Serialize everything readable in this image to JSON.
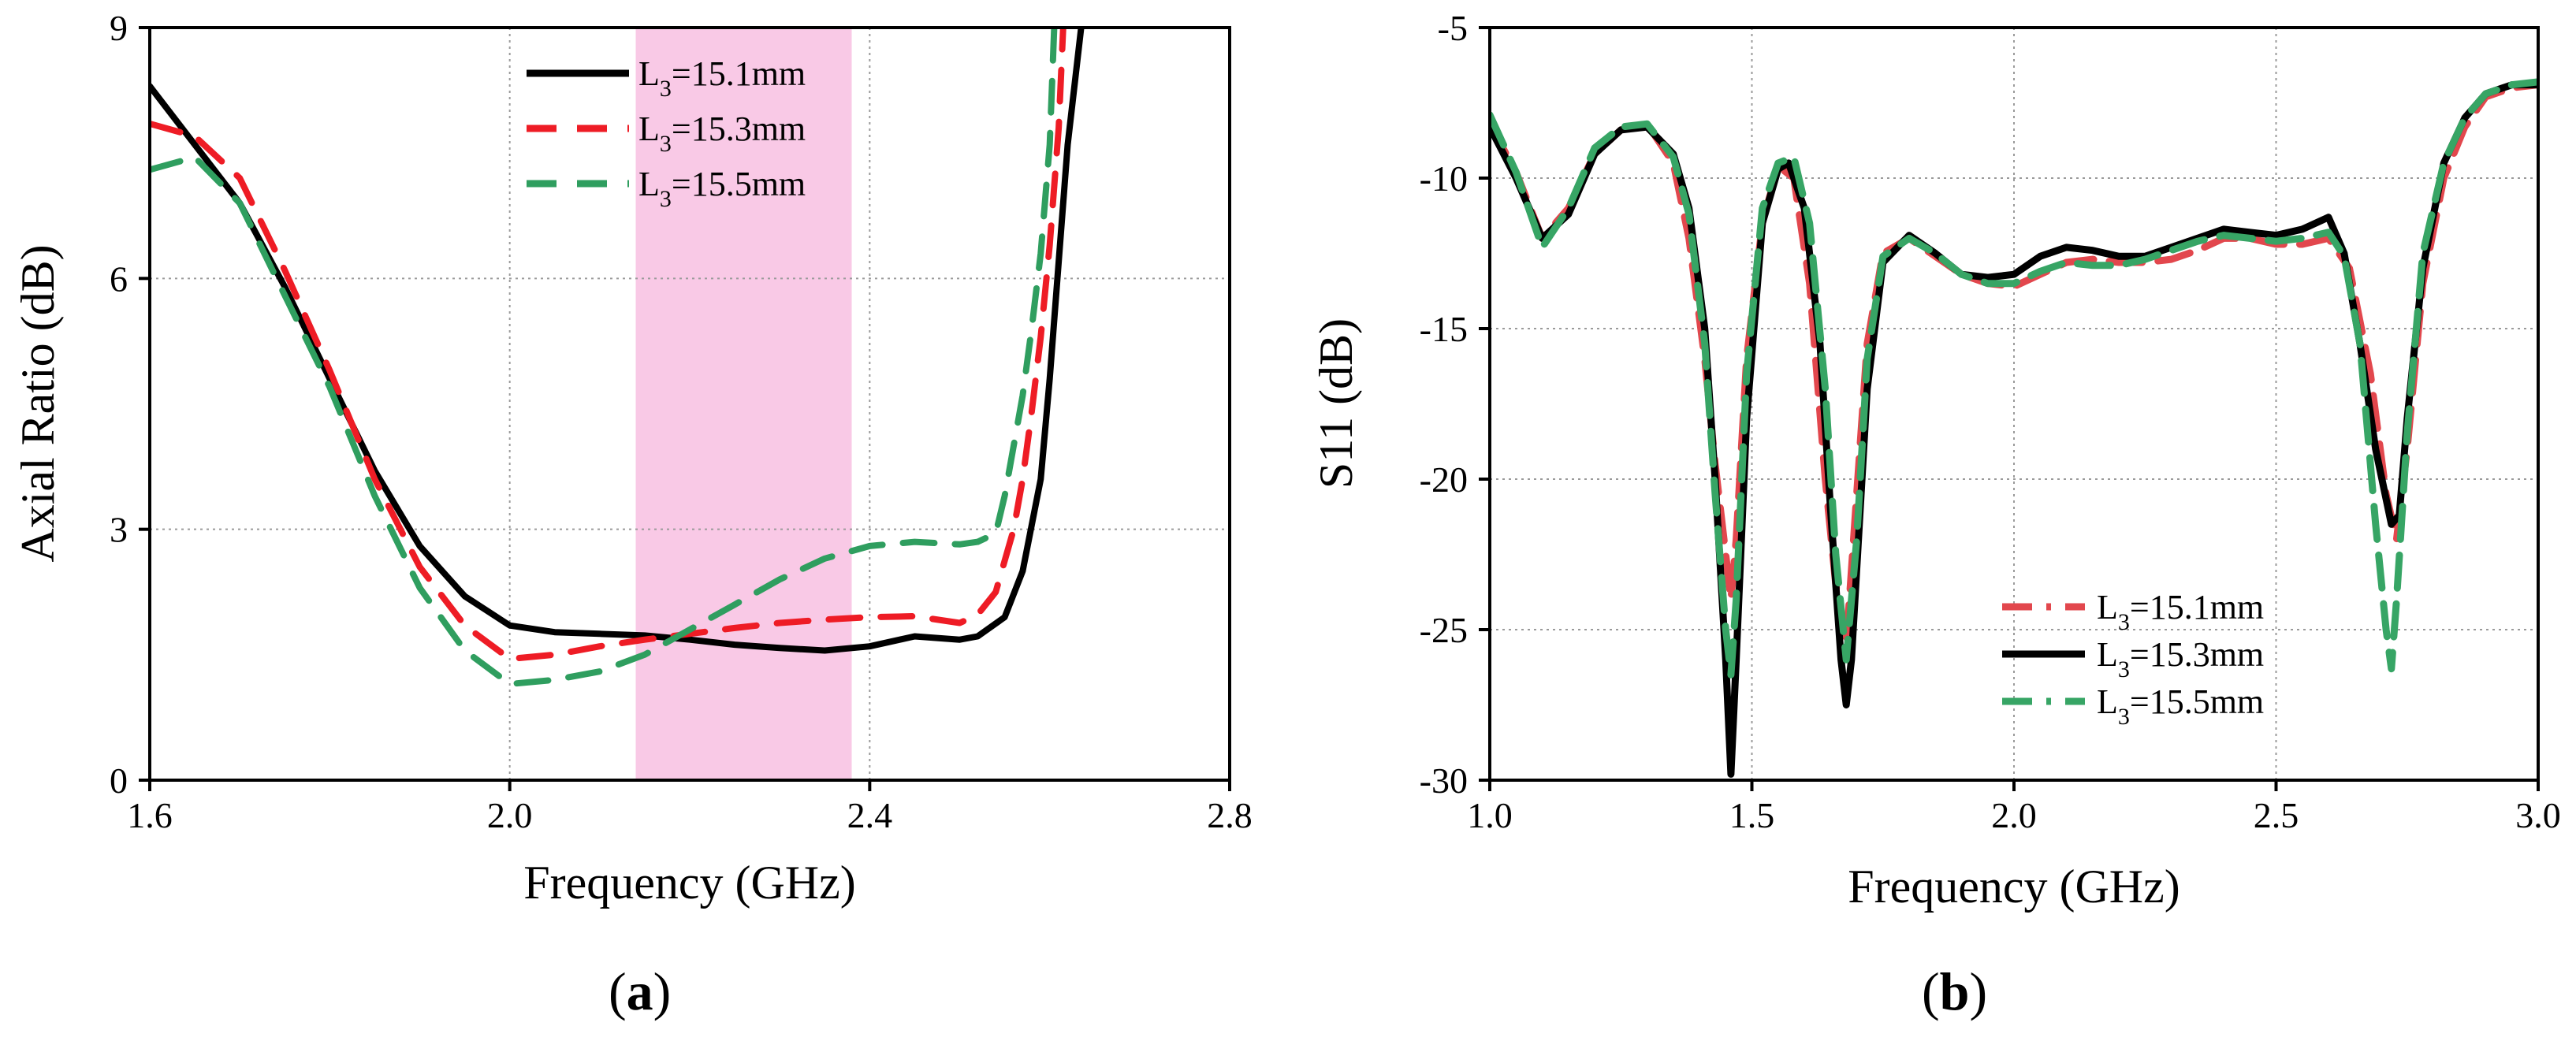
{
  "chart_data": [
    {
      "type": "line",
      "panel_label": "a",
      "xlabel": "Frequency (GHz)",
      "ylabel": "Axial Ratio (dB)",
      "xlim": [
        1.6,
        2.8
      ],
      "ylim": [
        0,
        9
      ],
      "xticks": [
        1.6,
        2.0,
        2.4,
        2.8
      ],
      "xtick_labels": [
        "1.6",
        "2.0",
        "2.4",
        "2.8"
      ],
      "yticks": [
        0,
        3,
        6,
        9
      ],
      "ytick_labels": [
        "0",
        "3",
        "6",
        "9"
      ],
      "grid": true,
      "legend_position": "top-center",
      "highlight_band": {
        "x_range": [
          2.14,
          2.38
        ],
        "color": "#f9c9e6"
      },
      "series": [
        {
          "name": "L3=15.1mm",
          "legend_base": "L",
          "legend_sub": "3",
          "legend_value": "=15.1mm",
          "color": "#000000",
          "style": "solid",
          "x": [
            1.6,
            1.65,
            1.7,
            1.75,
            1.8,
            1.85,
            1.9,
            1.95,
            2.0,
            2.05,
            2.1,
            2.15,
            2.2,
            2.25,
            2.3,
            2.35,
            2.4,
            2.45,
            2.5,
            2.52,
            2.55,
            2.57,
            2.59,
            2.6,
            2.61,
            2.62,
            2.635
          ],
          "y": [
            8.3,
            7.6,
            6.9,
            5.9,
            4.8,
            3.7,
            2.8,
            2.2,
            1.85,
            1.77,
            1.75,
            1.73,
            1.68,
            1.62,
            1.58,
            1.55,
            1.6,
            1.72,
            1.68,
            1.72,
            1.95,
            2.5,
            3.6,
            4.8,
            6.2,
            7.6,
            9.0
          ]
        },
        {
          "name": "L3=15.3mm",
          "legend_base": "L",
          "legend_sub": "3",
          "legend_value": "=15.3mm",
          "color": "#ee1c25",
          "style": "dashed",
          "x": [
            1.6,
            1.65,
            1.7,
            1.75,
            1.8,
            1.85,
            1.9,
            1.95,
            2.0,
            2.05,
            2.1,
            2.15,
            2.2,
            2.25,
            2.3,
            2.35,
            2.4,
            2.45,
            2.5,
            2.52,
            2.54,
            2.56,
            2.57,
            2.58,
            2.59,
            2.6,
            2.61,
            2.615
          ],
          "y": [
            7.85,
            7.7,
            7.2,
            6.1,
            4.9,
            3.6,
            2.55,
            1.85,
            1.45,
            1.5,
            1.6,
            1.68,
            1.75,
            1.82,
            1.88,
            1.92,
            1.95,
            1.96,
            1.88,
            1.98,
            2.25,
            3.0,
            3.6,
            4.4,
            5.3,
            6.4,
            7.8,
            9.0
          ]
        },
        {
          "name": "L3=15.5mm",
          "legend_base": "L",
          "legend_sub": "3",
          "legend_value": "=15.5mm",
          "color": "#2f9e5f",
          "style": "dashed",
          "x": [
            1.6,
            1.65,
            1.7,
            1.75,
            1.8,
            1.85,
            1.9,
            1.95,
            2.0,
            2.05,
            2.1,
            2.15,
            2.2,
            2.25,
            2.3,
            2.35,
            2.4,
            2.45,
            2.5,
            2.52,
            2.54,
            2.55,
            2.56,
            2.57,
            2.58,
            2.59,
            2.6,
            2.605
          ],
          "y": [
            7.3,
            7.45,
            6.9,
            5.8,
            4.7,
            3.4,
            2.3,
            1.55,
            1.15,
            1.2,
            1.3,
            1.5,
            1.8,
            2.1,
            2.4,
            2.65,
            2.8,
            2.85,
            2.82,
            2.85,
            2.95,
            3.4,
            4.0,
            4.6,
            5.4,
            6.3,
            7.6,
            9.0
          ]
        }
      ]
    },
    {
      "type": "line",
      "panel_label": "b",
      "xlabel": "Frequency (GHz)",
      "ylabel": "S11 (dB)",
      "xlim": [
        1.0,
        3.0
      ],
      "ylim": [
        -30,
        -5
      ],
      "xticks": [
        1.0,
        1.5,
        2.0,
        2.5,
        3.0
      ],
      "xtick_labels": [
        "1.0",
        "1.5",
        "2.0",
        "2.5",
        "3.0"
      ],
      "yticks": [
        -30,
        -25,
        -20,
        -15,
        -10,
        -5
      ],
      "ytick_labels": [
        "-30",
        "-25",
        "-20",
        "-15",
        "-10",
        "-5"
      ],
      "grid": true,
      "legend_position": "bottom-center",
      "series": [
        {
          "name": "L3=15.1mm",
          "legend_base": "L",
          "legend_sub": "3",
          "legend_value": "=15.1mm",
          "color": "#e2474d",
          "style": "dashed",
          "x": [
            1.0,
            1.05,
            1.1,
            1.15,
            1.2,
            1.25,
            1.3,
            1.35,
            1.38,
            1.41,
            1.43,
            1.45,
            1.46,
            1.47,
            1.49,
            1.52,
            1.55,
            1.58,
            1.61,
            1.64,
            1.66,
            1.68,
            1.7,
            1.72,
            1.75,
            1.8,
            1.85,
            1.9,
            1.95,
            2.0,
            2.05,
            2.1,
            2.15,
            2.2,
            2.25,
            2.3,
            2.35,
            2.4,
            2.45,
            2.5,
            2.55,
            2.6,
            2.64,
            2.68,
            2.71,
            2.73,
            2.75,
            2.78,
            2.82,
            2.86,
            2.9,
            2.95,
            3.0
          ],
          "y": [
            -8.2,
            -9.8,
            -12.0,
            -11.0,
            -9.2,
            -8.4,
            -8.2,
            -9.5,
            -12.0,
            -16.0,
            -19.5,
            -22.5,
            -24.0,
            -22.0,
            -16.0,
            -11.5,
            -9.6,
            -10.0,
            -13.5,
            -20.0,
            -23.5,
            -25.5,
            -20.5,
            -15.5,
            -12.5,
            -12.0,
            -12.6,
            -13.2,
            -13.5,
            -13.6,
            -13.2,
            -12.8,
            -12.7,
            -12.8,
            -12.8,
            -12.7,
            -12.4,
            -12.0,
            -12.0,
            -12.2,
            -12.2,
            -12.0,
            -13.0,
            -16.5,
            -20.5,
            -22.0,
            -19.0,
            -13.5,
            -10.0,
            -8.3,
            -7.3,
            -7.0,
            -6.9
          ]
        },
        {
          "name": "L3=15.3mm",
          "legend_base": "L",
          "legend_sub": "3",
          "legend_value": "=15.3mm",
          "color": "#000000",
          "style": "solid",
          "x": [
            1.0,
            1.05,
            1.1,
            1.15,
            1.2,
            1.25,
            1.3,
            1.35,
            1.38,
            1.41,
            1.43,
            1.45,
            1.46,
            1.47,
            1.49,
            1.52,
            1.55,
            1.57,
            1.6,
            1.63,
            1.65,
            1.67,
            1.68,
            1.69,
            1.72,
            1.75,
            1.8,
            1.85,
            1.9,
            1.95,
            2.0,
            2.05,
            2.1,
            2.15,
            2.2,
            2.25,
            2.3,
            2.35,
            2.4,
            2.45,
            2.5,
            2.55,
            2.6,
            2.63,
            2.66,
            2.69,
            2.72,
            2.735,
            2.75,
            2.78,
            2.82,
            2.86,
            2.9,
            2.95,
            3.0
          ],
          "y": [
            -8.3,
            -10.0,
            -12.0,
            -11.2,
            -9.2,
            -8.4,
            -8.3,
            -9.2,
            -11.0,
            -15.0,
            -20.0,
            -26.0,
            -29.8,
            -26.0,
            -18.0,
            -11.5,
            -9.7,
            -9.5,
            -11.0,
            -15.5,
            -21.0,
            -26.0,
            -27.5,
            -26.0,
            -17.0,
            -12.8,
            -11.9,
            -12.5,
            -13.2,
            -13.3,
            -13.2,
            -12.6,
            -12.3,
            -12.4,
            -12.6,
            -12.6,
            -12.3,
            -12.0,
            -11.7,
            -11.8,
            -11.9,
            -11.7,
            -11.3,
            -12.5,
            -15.5,
            -19.0,
            -21.5,
            -21.2,
            -18.0,
            -13.0,
            -9.5,
            -8.0,
            -7.2,
            -6.9,
            -6.9
          ]
        },
        {
          "name": "L3=15.5mm",
          "legend_base": "L",
          "legend_sub": "3",
          "legend_value": "=15.5mm",
          "color": "#37a565",
          "style": "dashed",
          "x": [
            1.0,
            1.05,
            1.1,
            1.15,
            1.2,
            1.25,
            1.3,
            1.35,
            1.38,
            1.41,
            1.43,
            1.45,
            1.46,
            1.47,
            1.49,
            1.52,
            1.55,
            1.58,
            1.61,
            1.64,
            1.66,
            1.68,
            1.7,
            1.72,
            1.75,
            1.8,
            1.85,
            1.9,
            1.95,
            2.0,
            2.05,
            2.1,
            2.15,
            2.2,
            2.25,
            2.3,
            2.35,
            2.4,
            2.45,
            2.5,
            2.55,
            2.6,
            2.63,
            2.66,
            2.69,
            2.71,
            2.72,
            2.73,
            2.75,
            2.78,
            2.82,
            2.86,
            2.9,
            2.95,
            3.0
          ],
          "y": [
            -7.9,
            -9.8,
            -12.3,
            -11.0,
            -9.0,
            -8.3,
            -8.2,
            -9.3,
            -11.2,
            -15.5,
            -20.5,
            -25.0,
            -26.5,
            -24.0,
            -16.5,
            -11.0,
            -9.5,
            -9.3,
            -11.5,
            -17.0,
            -22.5,
            -26.0,
            -22.0,
            -16.0,
            -12.6,
            -12.0,
            -12.5,
            -13.2,
            -13.5,
            -13.5,
            -13.1,
            -12.8,
            -12.9,
            -12.9,
            -12.7,
            -12.4,
            -12.1,
            -11.9,
            -12.0,
            -12.1,
            -12.0,
            -11.8,
            -12.6,
            -15.5,
            -21.5,
            -25.0,
            -26.3,
            -24.0,
            -18.5,
            -12.5,
            -9.5,
            -8.0,
            -7.2,
            -6.9,
            -6.8
          ]
        }
      ]
    }
  ]
}
